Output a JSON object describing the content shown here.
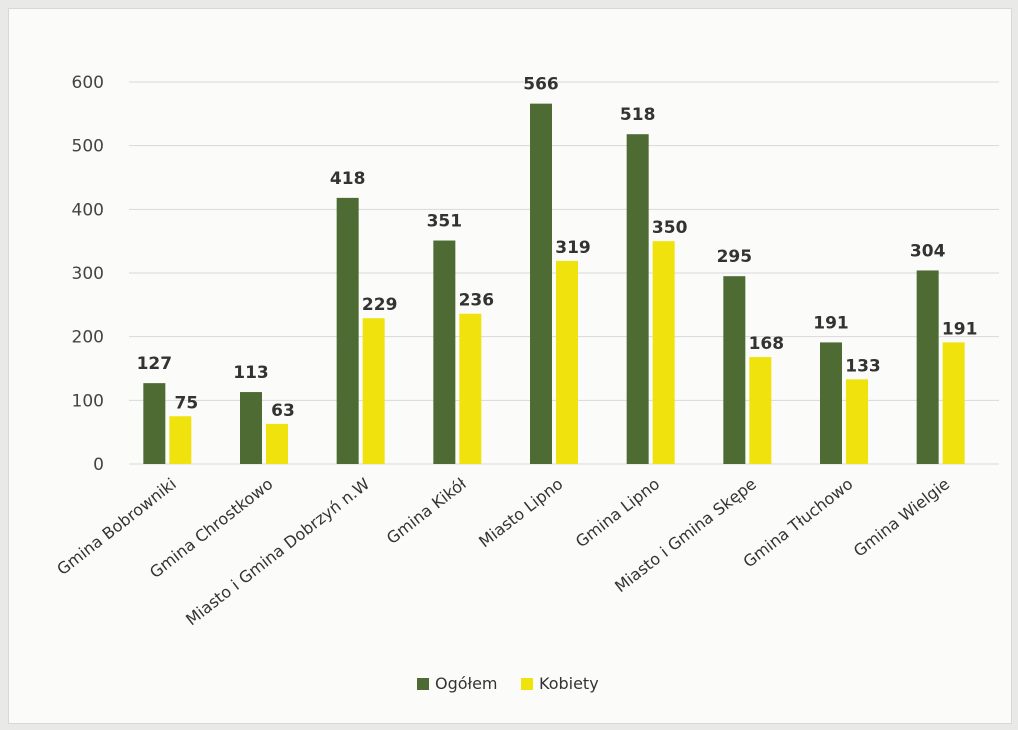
{
  "chart_data": {
    "type": "bar",
    "title": "",
    "xlabel": "",
    "ylabel": "",
    "ylim": [
      0,
      600
    ],
    "yticks": [
      0,
      100,
      200,
      300,
      400,
      500,
      600
    ],
    "grid": true,
    "legend_position": "bottom",
    "categories": [
      "Gmina Bobrowniki",
      "Gmina Chrostkowo",
      "Miasto i Gmina Dobrzyń n.W",
      "Gmina Kikół",
      "Miasto Lipno",
      "Gmina Lipno",
      "Miasto i Gmina Skępe",
      "Gmina Tłuchowo",
      "Gmina Wielgie"
    ],
    "series": [
      {
        "name": "Ogółem",
        "color": "#4e6b34",
        "values": [
          127,
          113,
          418,
          351,
          566,
          518,
          295,
          191,
          304
        ]
      },
      {
        "name": "Kobiety",
        "color": "#f0e20c",
        "values": [
          75,
          63,
          229,
          236,
          319,
          350,
          168,
          133,
          191
        ]
      }
    ]
  }
}
